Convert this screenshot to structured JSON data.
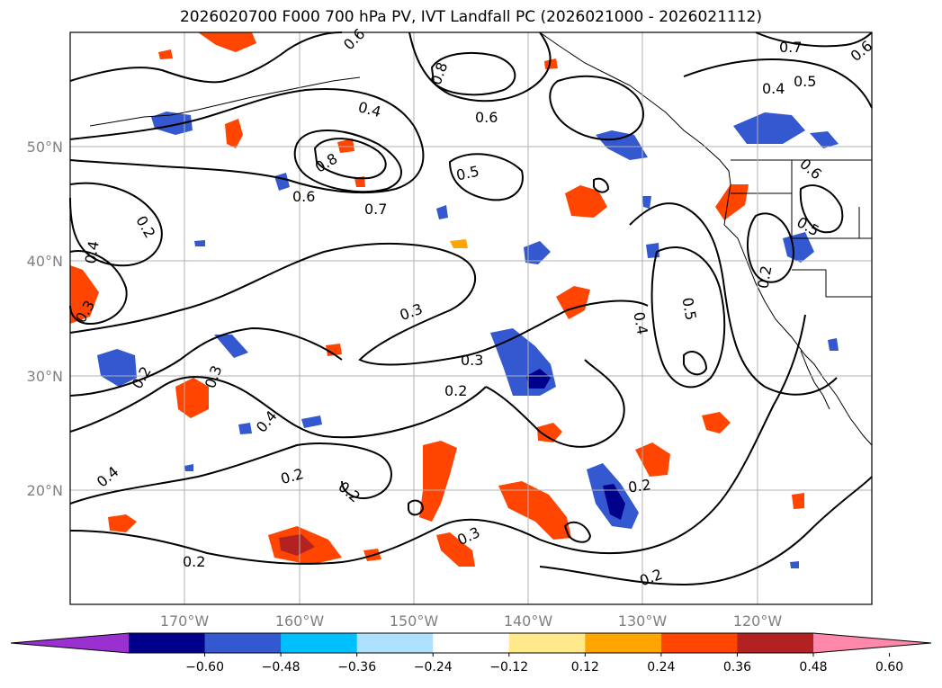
{
  "title": "2026020700 F000 700 hPa PV, IVT Landfall PC (2026021000 - 2026021112)",
  "map": {
    "lon_range": [
      -180,
      -110
    ],
    "lat_range": [
      10,
      60
    ],
    "lon_ticks": [
      "170°W",
      "160°W",
      "150°W",
      "140°W",
      "130°W",
      "120°W"
    ],
    "lat_ticks": [
      "20°N",
      "30°N",
      "40°N",
      "50°N"
    ],
    "grid": true,
    "contour_labels": [
      "0.6",
      "0.8",
      "0.7",
      "0.4",
      "0.5",
      "0.4",
      "0.6",
      "0.6",
      "0.8",
      "0.7",
      "0.6",
      "0.5",
      "0.2",
      "0.4",
      "0.3",
      "0.3",
      "0.5",
      "0.4",
      "0.2",
      "0.3",
      "0.3",
      "0.2",
      "0.4",
      "0.2",
      "0.4",
      "0.2",
      "0.2",
      "0.3",
      "0.2",
      "0.2",
      "0.6",
      "0.5",
      "0.2"
    ]
  },
  "colorbar": {
    "tick_labels": [
      "−0.60",
      "−0.48",
      "−0.36",
      "−0.24",
      "−0.12",
      "0.12",
      "0.24",
      "0.36",
      "0.48",
      "0.60"
    ],
    "colors": [
      "#9b30d0",
      "#00008b",
      "#3358d0",
      "#00bfff",
      "#aee0ff",
      "#ffffff",
      "#ffe98a",
      "#ffa500",
      "#ff4500",
      "#b22222",
      "#ff88aa"
    ],
    "extend": "both"
  }
}
